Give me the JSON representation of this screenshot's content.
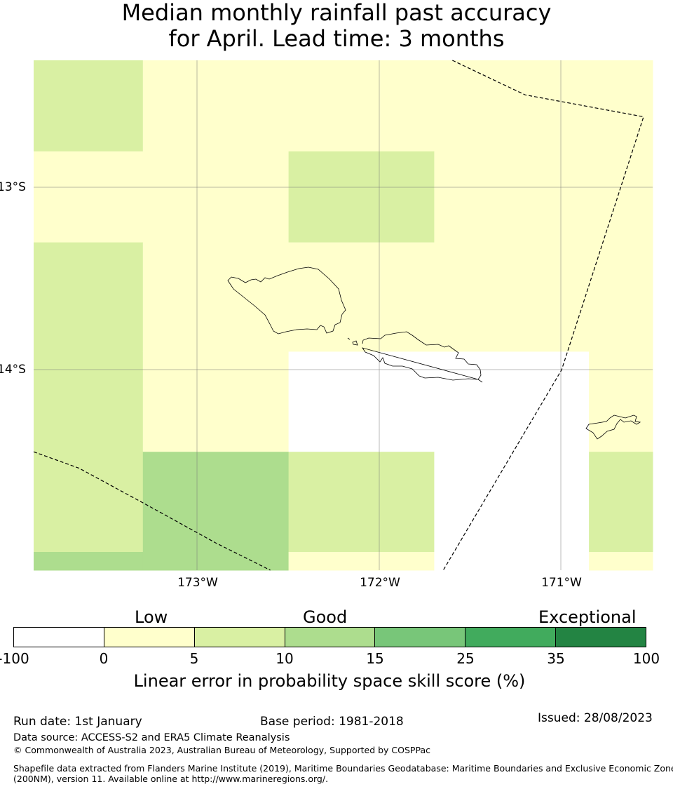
{
  "title": {
    "line1": "Median monthly rainfall past accuracy",
    "line2": "for April. Lead time: 3 months"
  },
  "map": {
    "lat_labels": [
      "13°S",
      "14°S"
    ],
    "lon_labels": [
      "173°W",
      "172°W",
      "171°W"
    ],
    "extent": {
      "lon_min": -173.9,
      "lon_max": -170.5,
      "lat_min": -15.1,
      "lat_max": -12.3
    },
    "grid_cells": [
      {
        "lon0": -173.9,
        "lon1": -173.3,
        "lat0": -12.8,
        "lat1": -12.3,
        "bin": 2
      },
      {
        "lon0": -173.3,
        "lon1": -170.5,
        "lat0": -12.8,
        "lat1": -12.3,
        "bin": 1
      },
      {
        "lon0": -173.9,
        "lon1": -172.5,
        "lat0": -13.3,
        "lat1": -12.8,
        "bin": 1
      },
      {
        "lon0": -172.5,
        "lon1": -171.7,
        "lat0": -13.3,
        "lat1": -12.8,
        "bin": 2
      },
      {
        "lon0": -171.7,
        "lon1": -170.5,
        "lat0": -13.3,
        "lat1": -12.8,
        "bin": 1
      },
      {
        "lon0": -173.9,
        "lon1": -173.3,
        "lat0": -14.6,
        "lat1": -13.3,
        "bin": 2
      },
      {
        "lon0": -173.3,
        "lon1": -170.5,
        "lat0": -13.9,
        "lat1": -13.3,
        "bin": 1
      },
      {
        "lon0": -173.3,
        "lon1": -172.5,
        "lat0": -14.45,
        "lat1": -13.9,
        "bin": 1
      },
      {
        "lon0": -172.5,
        "lon1": -170.85,
        "lat0": -14.45,
        "lat1": -13.9,
        "bin": 0
      },
      {
        "lon0": -170.85,
        "lon1": -170.5,
        "lat0": -14.45,
        "lat1": -13.9,
        "bin": 1
      },
      {
        "lon0": -173.9,
        "lon1": -173.3,
        "lat0": -15.0,
        "lat1": -14.45,
        "bin": 2
      },
      {
        "lon0": -173.9,
        "lon1": -173.3,
        "lat0": -15.1,
        "lat1": -15.0,
        "bin": 3
      },
      {
        "lon0": -173.3,
        "lon1": -172.5,
        "lat0": -15.1,
        "lat1": -14.45,
        "bin": 3
      },
      {
        "lon0": -172.5,
        "lon1": -171.7,
        "lat0": -15.0,
        "lat1": -14.45,
        "bin": 2
      },
      {
        "lon0": -172.5,
        "lon1": -171.7,
        "lat0": -15.1,
        "lat1": -15.0,
        "bin": 1
      },
      {
        "lon0": -171.7,
        "lon1": -170.85,
        "lat0": -15.1,
        "lat1": -14.45,
        "bin": 0
      },
      {
        "lon0": -170.85,
        "lon1": -170.5,
        "lat0": -15.0,
        "lat1": -14.45,
        "bin": 2
      },
      {
        "lon0": -170.85,
        "lon1": -170.5,
        "lat0": -15.1,
        "lat1": -15.0,
        "bin": 1
      }
    ],
    "eez_boundaries": [
      {
        "name": "eez-boundary-north",
        "points": [
          [
            -171.6,
            -12.3
          ],
          [
            -171.2,
            -12.49
          ],
          [
            -170.55,
            -12.61
          ],
          [
            -171.0,
            -14.0
          ],
          [
            -171.65,
            -15.1
          ]
        ]
      },
      {
        "name": "eez-boundary-southwest",
        "points": [
          [
            -173.9,
            -14.45
          ],
          [
            -173.65,
            -14.54
          ],
          [
            -173.3,
            -14.73
          ],
          [
            -172.9,
            -14.95
          ],
          [
            -172.6,
            -15.1
          ]
        ]
      }
    ]
  },
  "legend": {
    "categories": [
      "Low",
      "Good",
      "Exceptional"
    ],
    "colors": [
      "#ffffff",
      "#ffffcc",
      "#d9f0a3",
      "#addd8e",
      "#78c679",
      "#41ab5d",
      "#238443"
    ],
    "ticks": [
      "-100",
      "0",
      "5",
      "10",
      "15",
      "25",
      "35",
      "100"
    ],
    "label": "Linear error in probability space skill score (%)"
  },
  "footer": {
    "run_date": "Run date: 1st January",
    "base_period": "Base period: 1981-2018",
    "issued": "Issued: 28/08/2023",
    "data_source": "Data source: ACCESS-S2 and ERA5 Climate Reanalysis",
    "copyright": "© Commonwealth of Australia 2023, Australian Bureau of Meteorology, Supported by COSPPac",
    "shapefile_line1": "Shapefile data extracted from Flanders Marine Institute (2019), Maritime Boundaries Geodatabase: Maritime Boundaries and Exclusive Economic Zones",
    "shapefile_line2": "(200NM), version 11. Available online at http://www.marineregions.org/."
  }
}
